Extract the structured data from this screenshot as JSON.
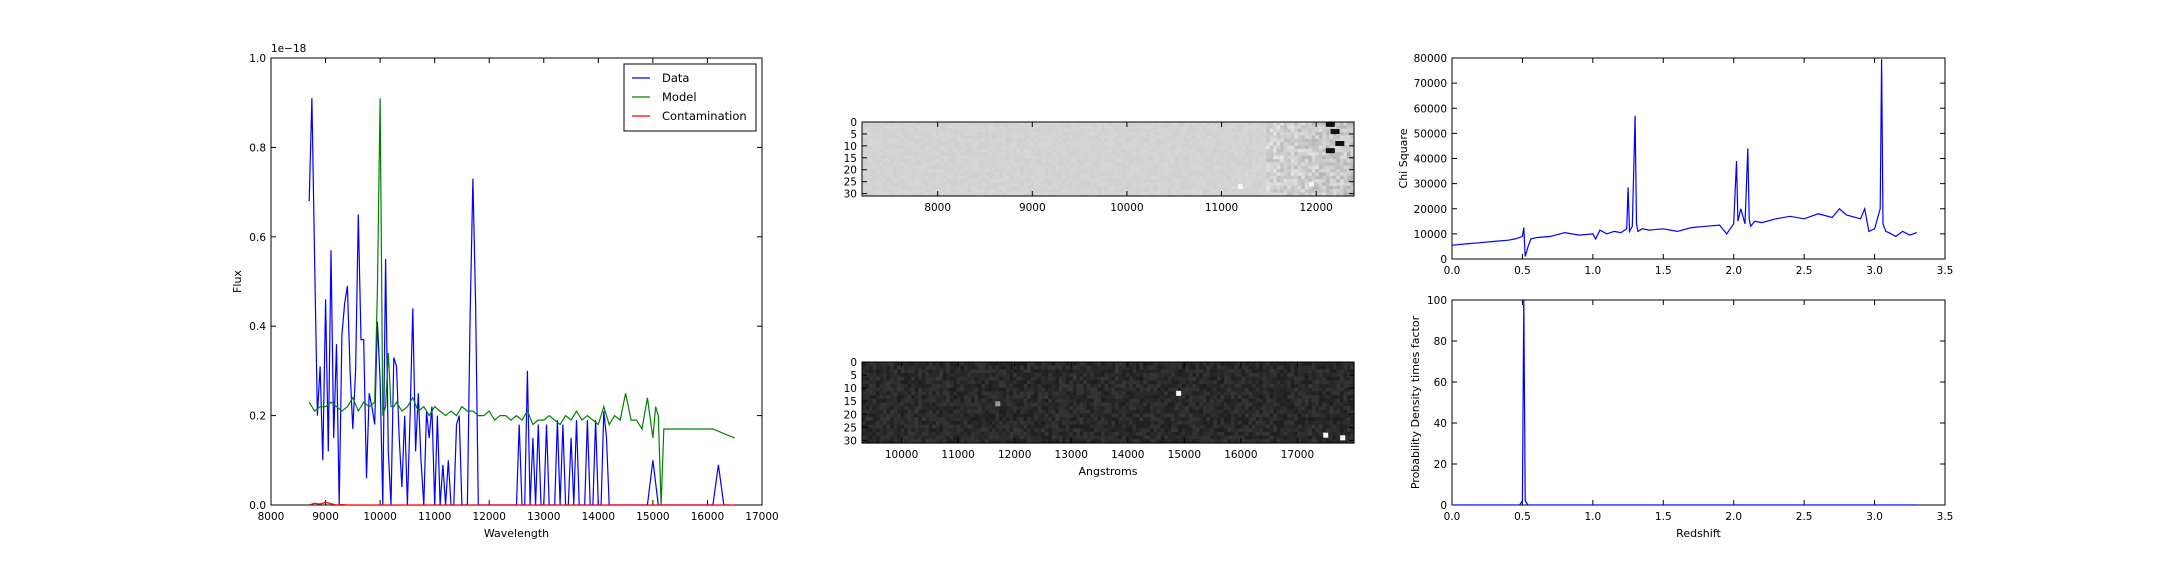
{
  "chart_data": [
    {
      "type": "line",
      "xlabel": "Wavelength",
      "ylabel": "Flux",
      "scale_label": "1e−18",
      "xlim": [
        8000,
        17000
      ],
      "ylim": [
        0,
        1.0
      ],
      "xticks": [
        8000,
        9000,
        10000,
        11000,
        12000,
        13000,
        14000,
        15000,
        16000,
        17000
      ],
      "yticks": [
        0.0,
        0.2,
        0.4,
        0.6,
        0.8,
        1.0
      ],
      "legend": "top-right",
      "series": [
        {
          "name": "Data",
          "color": "#0000ff",
          "x": [
            8700,
            8750,
            8800,
            8850,
            8900,
            8950,
            9000,
            9050,
            9100,
            9150,
            9200,
            9250,
            9300,
            9350,
            9400,
            9450,
            9500,
            9550,
            9600,
            9650,
            9700,
            9750,
            9800,
            9850,
            9900,
            9950,
            10000,
            10050,
            10100,
            10150,
            10200,
            10250,
            10300,
            10350,
            10400,
            10450,
            10500,
            10550,
            10600,
            10650,
            10700,
            10750,
            10800,
            10850,
            10900,
            10950,
            11000,
            11050,
            11100,
            11150,
            11200,
            11250,
            11300,
            11350,
            11400,
            11450,
            11500,
            11550,
            11600,
            11650,
            11700,
            11750,
            11800,
            11850,
            11900,
            11950,
            12000,
            12100,
            12200,
            12300,
            12400,
            12450,
            12500,
            12550,
            12600,
            12650,
            12700,
            12750,
            12800,
            12850,
            12900,
            12950,
            13000,
            13050,
            13100,
            13150,
            13200,
            13250,
            13300,
            13350,
            13400,
            13450,
            13500,
            13550,
            13600,
            13650,
            13700,
            13750,
            13800,
            13850,
            13900,
            13950,
            14000,
            14050,
            14100,
            14150,
            14200,
            14300,
            14400,
            14500,
            14600,
            14700,
            14800,
            14900,
            15000,
            15100,
            15200,
            15300,
            15400,
            15500,
            15600,
            15700,
            15800,
            15900,
            16000,
            16100,
            16200,
            16300,
            16400
          ],
          "y": [
            0.68,
            0.91,
            0.55,
            0.2,
            0.31,
            0.1,
            0.46,
            0.12,
            0.57,
            0.15,
            0.36,
            0.0,
            0.38,
            0.45,
            0.49,
            0.3,
            0.17,
            0.3,
            0.65,
            0.37,
            0.37,
            0.06,
            0.25,
            0.22,
            0.18,
            0.41,
            0.28,
            0.0,
            0.55,
            0.12,
            0.0,
            0.33,
            0.31,
            0.15,
            0.04,
            0.2,
            0.0,
            0.2,
            0.44,
            0.12,
            0.25,
            0.1,
            0.0,
            0.21,
            0.15,
            0.22,
            0.0,
            0.2,
            0.0,
            0.09,
            0.0,
            0.1,
            0.0,
            0.0,
            0.18,
            0.2,
            0.0,
            0.0,
            0.0,
            0.42,
            0.73,
            0.45,
            0.0,
            0.0,
            0.0,
            0.0,
            0.0,
            0.0,
            0.0,
            0.0,
            0.0,
            0.0,
            0.0,
            0.18,
            0.0,
            0.0,
            0.3,
            0.0,
            0.15,
            0.0,
            0.18,
            0.0,
            0.0,
            0.18,
            0.0,
            0.0,
            0.0,
            0.19,
            0.0,
            0.18,
            0.0,
            0.0,
            0.15,
            0.0,
            0.19,
            0.0,
            0.0,
            0.0,
            0.19,
            0.0,
            0.0,
            0.19,
            0.0,
            0.0,
            0.21,
            0.15,
            0.0,
            0.0,
            0.0,
            0.0,
            0.0,
            0.0,
            0.0,
            0.0,
            0.1,
            0.0,
            0.0,
            0.0,
            0.0,
            0.0,
            0.0,
            0.0,
            0.0,
            0.0,
            0.0,
            0.0,
            0.09,
            0.0,
            0.0
          ]
        },
        {
          "name": "Model",
          "color": "#008000",
          "x": [
            8700,
            8800,
            8900,
            9000,
            9100,
            9200,
            9300,
            9400,
            9500,
            9600,
            9700,
            9800,
            9900,
            9950,
            10000,
            10050,
            10100,
            10150,
            10200,
            10250,
            10300,
            10400,
            10500,
            10600,
            10700,
            10800,
            10900,
            11000,
            11100,
            11200,
            11300,
            11400,
            11500,
            11600,
            11700,
            11800,
            11900,
            12000,
            12100,
            12200,
            12300,
            12400,
            12500,
            12600,
            12700,
            12800,
            12900,
            13000,
            13100,
            13200,
            13300,
            13400,
            13500,
            13600,
            13700,
            13800,
            13900,
            14000,
            14100,
            14200,
            14300,
            14400,
            14500,
            14600,
            14700,
            14800,
            14900,
            15000,
            15050,
            15100,
            15150,
            15200,
            15300,
            15500,
            15700,
            15900,
            16100,
            16300,
            16500
          ],
          "y": [
            0.23,
            0.21,
            0.22,
            0.22,
            0.23,
            0.22,
            0.21,
            0.22,
            0.24,
            0.21,
            0.23,
            0.22,
            0.23,
            0.48,
            0.91,
            0.2,
            0.22,
            0.34,
            0.22,
            0.22,
            0.23,
            0.21,
            0.22,
            0.24,
            0.21,
            0.22,
            0.2,
            0.22,
            0.21,
            0.2,
            0.21,
            0.2,
            0.22,
            0.21,
            0.21,
            0.2,
            0.2,
            0.21,
            0.19,
            0.2,
            0.2,
            0.19,
            0.2,
            0.19,
            0.21,
            0.18,
            0.19,
            0.19,
            0.2,
            0.19,
            0.18,
            0.2,
            0.19,
            0.21,
            0.19,
            0.2,
            0.19,
            0.18,
            0.22,
            0.18,
            0.2,
            0.19,
            0.25,
            0.19,
            0.19,
            0.17,
            0.24,
            0.15,
            0.22,
            0.2,
            0.0,
            0.17,
            0.17,
            0.17,
            0.17,
            0.17,
            0.17,
            0.16,
            0.15
          ]
        },
        {
          "name": "Contamination",
          "color": "#ff0000",
          "x": [
            8700,
            8800,
            8900,
            9000,
            9100,
            9200,
            9300,
            9400,
            10000,
            11000,
            12000,
            13000,
            14000,
            15000,
            16000,
            16500
          ],
          "y": [
            0.0,
            0.004,
            0.002,
            0.006,
            0.003,
            0.0,
            0.001,
            0.0,
            0.0,
            0.0,
            0.0,
            0.0,
            0.0,
            0.0,
            0.0,
            0.0
          ]
        }
      ]
    },
    {
      "type": "heatmap",
      "colormap": "gray",
      "xlim": [
        7200,
        12400
      ],
      "ylim": [
        0,
        31
      ],
      "xticks": [
        8000,
        9000,
        10000,
        11000,
        12000
      ],
      "yticks": [
        0,
        5,
        10,
        15,
        20,
        25,
        30
      ],
      "features": [
        {
          "x": 12150,
          "y": 1,
          "value": "dark"
        },
        {
          "x": 12200,
          "y": 4,
          "value": "dark"
        },
        {
          "x": 12250,
          "y": 9,
          "value": "dark"
        },
        {
          "x": 12150,
          "y": 12,
          "value": "dark"
        },
        {
          "x": 11200,
          "y": 27,
          "value": "light"
        },
        {
          "x": 11950,
          "y": 26,
          "value": "light"
        }
      ]
    },
    {
      "type": "heatmap",
      "colormap": "gray",
      "xlabel": "Angstroms",
      "xlim": [
        9300,
        18000
      ],
      "ylim": [
        0,
        31
      ],
      "xticks": [
        10000,
        11000,
        12000,
        13000,
        14000,
        15000,
        16000,
        17000
      ],
      "yticks": [
        0,
        5,
        10,
        15,
        20,
        25,
        30
      ],
      "features": [
        {
          "x": 14900,
          "y": 12,
          "value": "bright"
        },
        {
          "x": 17500,
          "y": 28,
          "value": "bright"
        },
        {
          "x": 17800,
          "y": 29,
          "value": "bright"
        },
        {
          "x": 11700,
          "y": 16,
          "value": "faint"
        }
      ]
    },
    {
      "type": "line",
      "ylabel": "Chi Square",
      "xlim": [
        0.0,
        3.5
      ],
      "ylim": [
        0,
        80000
      ],
      "xticks": [
        0.0,
        0.5,
        1.0,
        1.5,
        2.0,
        2.5,
        3.0,
        3.5
      ],
      "yticks": [
        0,
        10000,
        20000,
        30000,
        40000,
        50000,
        60000,
        70000,
        80000
      ],
      "series": [
        {
          "color": "#0000ff",
          "x": [
            0.0,
            0.1,
            0.2,
            0.3,
            0.4,
            0.45,
            0.5,
            0.51,
            0.52,
            0.54,
            0.56,
            0.6,
            0.7,
            0.8,
            0.9,
            1.0,
            1.02,
            1.05,
            1.1,
            1.15,
            1.2,
            1.24,
            1.25,
            1.26,
            1.28,
            1.3,
            1.31,
            1.32,
            1.35,
            1.4,
            1.5,
            1.6,
            1.7,
            1.8,
            1.9,
            1.95,
            2.0,
            2.02,
            2.03,
            2.05,
            2.08,
            2.1,
            2.11,
            2.12,
            2.15,
            2.2,
            2.3,
            2.4,
            2.5,
            2.6,
            2.7,
            2.75,
            2.8,
            2.9,
            2.93,
            2.96,
            3.0,
            3.04,
            3.05,
            3.06,
            3.08,
            3.1,
            3.15,
            3.2,
            3.25,
            3.3
          ],
          "y": [
            5500,
            6000,
            6500,
            7000,
            7500,
            8000,
            9000,
            12500,
            1000,
            5000,
            8000,
            8500,
            9000,
            10500,
            9500,
            10000,
            8000,
            11500,
            10000,
            11000,
            10500,
            12000,
            28500,
            11000,
            13000,
            57000,
            14000,
            11000,
            12000,
            11500,
            12000,
            11000,
            12500,
            13000,
            13500,
            10000,
            14000,
            39000,
            15000,
            20000,
            14000,
            44000,
            16000,
            13000,
            15000,
            14500,
            16000,
            17000,
            16000,
            18000,
            16500,
            20000,
            17500,
            16000,
            20000,
            11000,
            12000,
            20000,
            79500,
            14000,
            11000,
            10500,
            9000,
            11000,
            9500,
            10500
          ]
        }
      ]
    },
    {
      "type": "line",
      "xlabel": "Redshift",
      "ylabel": "Probability Density times factor",
      "xlim": [
        0.0,
        3.5
      ],
      "ylim": [
        0,
        100
      ],
      "xticks": [
        0.0,
        0.5,
        1.0,
        1.5,
        2.0,
        2.5,
        3.0,
        3.5
      ],
      "yticks": [
        0,
        20,
        40,
        60,
        80,
        100
      ],
      "series": [
        {
          "color": "#0000ff",
          "x": [
            0.0,
            0.48,
            0.5,
            0.51,
            0.52,
            0.54,
            3.3
          ],
          "y": [
            0,
            0,
            2,
            100,
            2,
            0,
            0
          ]
        }
      ]
    }
  ]
}
